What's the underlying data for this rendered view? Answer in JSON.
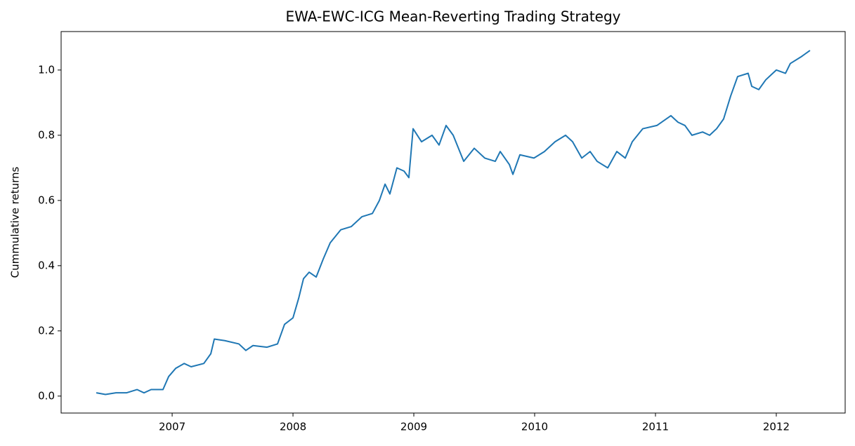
{
  "chart_data": {
    "type": "line",
    "title": "EWA-EWC-ICG Mean-Reverting Trading Strategy",
    "y_label": "Cummulative returns",
    "x": [
      2006.372,
      2006.448,
      2006.535,
      2006.622,
      2006.709,
      2006.767,
      2006.826,
      2006.924,
      2006.971,
      2007.029,
      2007.099,
      2007.157,
      2007.262,
      2007.32,
      2007.349,
      2007.436,
      2007.552,
      2007.61,
      2007.669,
      2007.785,
      2007.872,
      2007.93,
      2008.0,
      2008.047,
      2008.087,
      2008.134,
      2008.192,
      2008.25,
      2008.308,
      2008.395,
      2008.483,
      2008.57,
      2008.657,
      2008.715,
      2008.762,
      2008.802,
      2008.86,
      2008.919,
      2008.959,
      2008.994,
      2009.064,
      2009.151,
      2009.209,
      2009.267,
      2009.326,
      2009.413,
      2009.5,
      2009.587,
      2009.674,
      2009.715,
      2009.791,
      2009.82,
      2009.878,
      2009.994,
      2010.081,
      2010.169,
      2010.256,
      2010.314,
      2010.39,
      2010.459,
      2010.517,
      2010.605,
      2010.68,
      2010.75,
      2010.808,
      2010.895,
      2011.012,
      2011.128,
      2011.186,
      2011.244,
      2011.302,
      2011.39,
      2011.448,
      2011.506,
      2011.564,
      2011.622,
      2011.68,
      2011.767,
      2011.797,
      2011.855,
      2011.913,
      2011.971,
      2012.0,
      2012.076,
      2012.116,
      2012.203,
      2012.279
    ],
    "series": [
      {
        "name": "Cummulative returns",
        "color": "#1f77b4",
        "values": [
          0.01,
          0.005,
          0.01,
          0.01,
          0.02,
          0.01,
          0.02,
          0.02,
          0.06,
          0.085,
          0.1,
          0.09,
          0.1,
          0.13,
          0.175,
          0.17,
          0.16,
          0.14,
          0.155,
          0.15,
          0.16,
          0.22,
          0.24,
          0.3,
          0.36,
          0.38,
          0.365,
          0.42,
          0.47,
          0.51,
          0.52,
          0.55,
          0.56,
          0.6,
          0.65,
          0.62,
          0.7,
          0.69,
          0.67,
          0.82,
          0.78,
          0.8,
          0.77,
          0.83,
          0.8,
          0.72,
          0.76,
          0.73,
          0.72,
          0.75,
          0.71,
          0.68,
          0.74,
          0.73,
          0.75,
          0.78,
          0.8,
          0.78,
          0.73,
          0.75,
          0.72,
          0.7,
          0.75,
          0.73,
          0.78,
          0.82,
          0.83,
          0.86,
          0.84,
          0.83,
          0.8,
          0.81,
          0.8,
          0.82,
          0.85,
          0.92,
          0.98,
          0.99,
          0.95,
          0.94,
          0.97,
          0.99,
          1.0,
          0.99,
          1.02,
          1.04,
          1.06
        ]
      }
    ],
    "xlim": [
      2006.081,
      2012.57
    ],
    "xticks": [
      2007,
      2008,
      2009,
      2010,
      2011,
      2012
    ],
    "ylim": [
      -0.052,
      1.118
    ],
    "yticks": [
      {
        "value": 0,
        "label": "0.0"
      },
      0.2,
      0.4,
      0.6,
      0.8,
      {
        "value": 1,
        "label": "1.0"
      }
    ],
    "grid": false
  }
}
